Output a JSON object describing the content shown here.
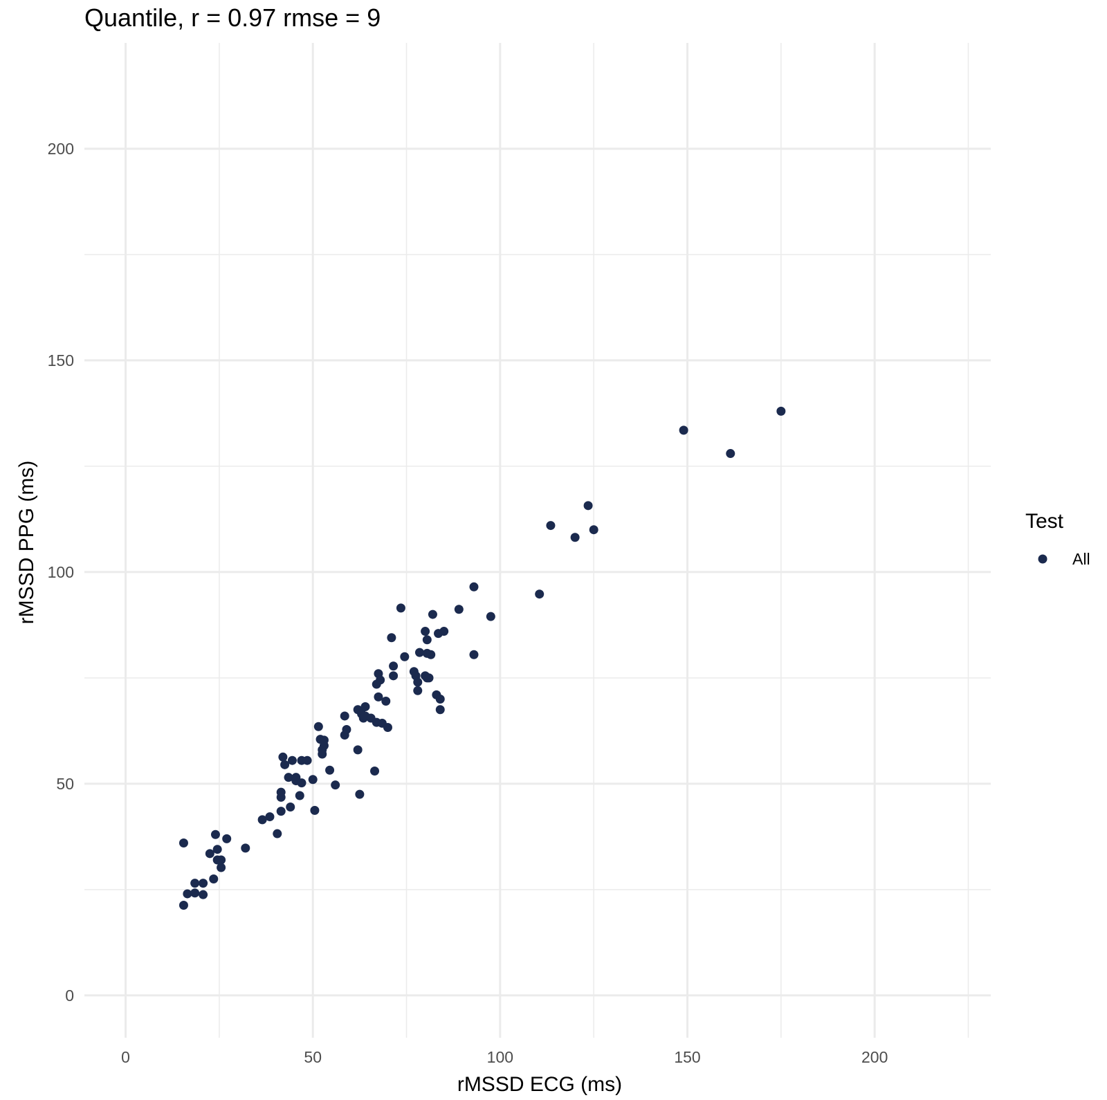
{
  "chart_data": {
    "type": "scatter",
    "title": "Quantile, r = 0.97 rmse = 9",
    "xlabel": "rMSSD ECG (ms)",
    "ylabel": "rMSSD PPG (ms)",
    "xlim": [
      -11,
      231
    ],
    "ylim": [
      -10,
      225
    ],
    "xticks": [
      0,
      50,
      100,
      150,
      200
    ],
    "yticks": [
      0,
      50,
      100,
      150,
      200
    ],
    "grid": true,
    "legend": {
      "title": "Test",
      "placement": "right",
      "entries": [
        "All"
      ]
    },
    "colors": {
      "point": "#1b2a4e",
      "grid": "#ebebeb",
      "background": "#ffffff"
    },
    "series": [
      {
        "name": "All",
        "points": [
          [
            15.5,
            21.3
          ],
          [
            16.5,
            24.0
          ],
          [
            15.5,
            36.0
          ],
          [
            18.5,
            26.5
          ],
          [
            18.5,
            24.2
          ],
          [
            20.7,
            23.8
          ],
          [
            20.7,
            26.5
          ],
          [
            23.5,
            27.5
          ],
          [
            22.5,
            33.5
          ],
          [
            24.0,
            38.0
          ],
          [
            24.5,
            34.5
          ],
          [
            24.5,
            32.0
          ],
          [
            25.5,
            30.2
          ],
          [
            25.5,
            32.0
          ],
          [
            27.0,
            37.0
          ],
          [
            32.0,
            34.8
          ],
          [
            36.5,
            41.5
          ],
          [
            38.5,
            42.2
          ],
          [
            40.5,
            38.2
          ],
          [
            41.5,
            43.5
          ],
          [
            41.5,
            46.8
          ],
          [
            41.5,
            48.0
          ],
          [
            42.0,
            56.3
          ],
          [
            42.5,
            54.5
          ],
          [
            43.5,
            51.5
          ],
          [
            44.0,
            44.5
          ],
          [
            44.5,
            55.5
          ],
          [
            45.5,
            51.5
          ],
          [
            45.5,
            50.7
          ],
          [
            46.5,
            47.2
          ],
          [
            47.0,
            50.2
          ],
          [
            47.0,
            55.5
          ],
          [
            48.5,
            55.5
          ],
          [
            50.0,
            51.0
          ],
          [
            50.5,
            43.7
          ],
          [
            51.5,
            63.5
          ],
          [
            52.0,
            60.5
          ],
          [
            52.5,
            57.0
          ],
          [
            52.5,
            58.0
          ],
          [
            53.0,
            59.0
          ],
          [
            53.0,
            60.3
          ],
          [
            54.5,
            53.2
          ],
          [
            56.0,
            49.7
          ],
          [
            58.5,
            66.0
          ],
          [
            58.5,
            61.5
          ],
          [
            59.0,
            62.8
          ],
          [
            62.0,
            67.5
          ],
          [
            62.0,
            58.0
          ],
          [
            62.5,
            47.5
          ],
          [
            63.0,
            66.5
          ],
          [
            63.5,
            65.5
          ],
          [
            64.0,
            68.2
          ],
          [
            64.0,
            66.0
          ],
          [
            65.5,
            65.5
          ],
          [
            66.5,
            53.0
          ],
          [
            67.0,
            64.5
          ],
          [
            67.0,
            73.5
          ],
          [
            67.5,
            70.5
          ],
          [
            67.5,
            76.0
          ],
          [
            68.0,
            74.5
          ],
          [
            68.5,
            64.3
          ],
          [
            69.5,
            69.5
          ],
          [
            70.0,
            63.3
          ],
          [
            71.0,
            84.5
          ],
          [
            71.5,
            75.5
          ],
          [
            71.5,
            77.8
          ],
          [
            73.5,
            91.5
          ],
          [
            74.5,
            80.0
          ],
          [
            77.0,
            76.5
          ],
          [
            77.5,
            75.5
          ],
          [
            78.0,
            72.0
          ],
          [
            78.0,
            74.0
          ],
          [
            78.5,
            81.0
          ],
          [
            80.0,
            75.5
          ],
          [
            80.0,
            86.0
          ],
          [
            80.5,
            80.8
          ],
          [
            80.5,
            84.0
          ],
          [
            80.5,
            75.0
          ],
          [
            81.0,
            75.0
          ],
          [
            81.5,
            80.5
          ],
          [
            82.0,
            90.0
          ],
          [
            83.0,
            71.0
          ],
          [
            83.5,
            85.5
          ],
          [
            84.0,
            70.0
          ],
          [
            84.0,
            67.5
          ],
          [
            85.0,
            86.0
          ],
          [
            89.0,
            91.2
          ],
          [
            93.0,
            96.5
          ],
          [
            93.0,
            80.5
          ],
          [
            97.5,
            89.5
          ],
          [
            110.5,
            94.8
          ],
          [
            113.5,
            111.0
          ],
          [
            120.0,
            108.2
          ],
          [
            123.5,
            115.7
          ],
          [
            125.0,
            110.0
          ],
          [
            149.0,
            133.5
          ],
          [
            161.5,
            128.0
          ],
          [
            175.0,
            138.0
          ]
        ]
      }
    ]
  }
}
